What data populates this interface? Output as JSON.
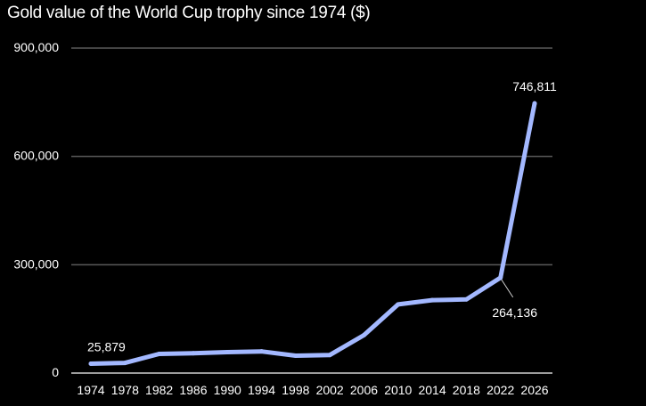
{
  "chart_data": {
    "type": "line",
    "title": "Gold value of the World Cup trophy since 1974 ($)",
    "xlabel": "",
    "ylabel": "",
    "x": [
      1974,
      1978,
      1982,
      1986,
      1990,
      1994,
      1998,
      2002,
      2006,
      2010,
      2014,
      2018,
      2022,
      2026
    ],
    "x_tick_labels": [
      "1974",
      "1978",
      "1982",
      "1986",
      "1990",
      "1994",
      "1998",
      "2002",
      "2006",
      "2010",
      "2014",
      "2018",
      "2022",
      "2026"
    ],
    "y_tick_values": [
      0,
      300000,
      600000,
      900000
    ],
    "y_tick_labels": [
      "0",
      "300,000",
      "600,000",
      "900,000"
    ],
    "ylim": [
      0,
      900000
    ],
    "grid": true,
    "series": [
      {
        "values": [
          25879,
          28000,
          53000,
          55000,
          58000,
          60000,
          48000,
          50000,
          105000,
          190000,
          202000,
          204000,
          264136,
          746811
        ]
      }
    ],
    "annotations": [
      {
        "index": 0,
        "text": "25,879",
        "placement": "above"
      },
      {
        "index": 12,
        "text": "264,136",
        "placement": "below-right"
      },
      {
        "index": 13,
        "text": "746,811",
        "placement": "above"
      }
    ],
    "colors": {
      "background": "#000000",
      "line": "#a3b8ff",
      "grid": "#5a5a5a",
      "axis": "#d0d0d0",
      "text": "#ffffff"
    }
  }
}
